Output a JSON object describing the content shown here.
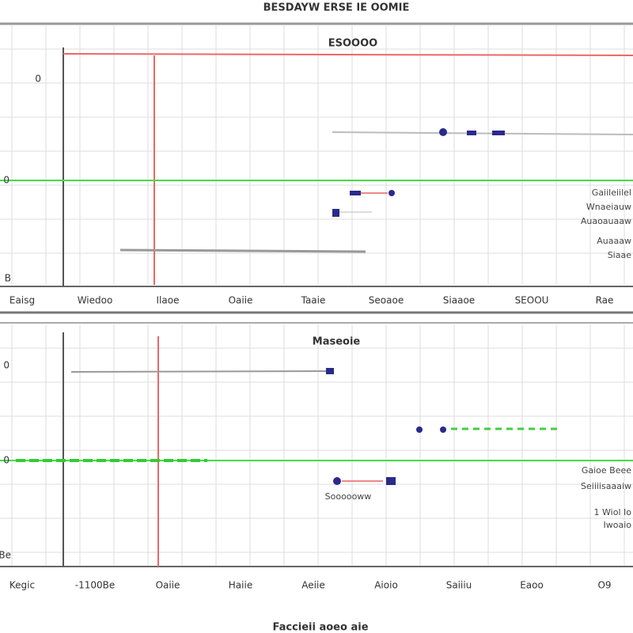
{
  "header": {
    "title": "BESDAYW ERSE IE OOMIE"
  },
  "panels": [
    {
      "title": "ESOOOO",
      "y_labels": [
        "0",
        "0",
        "B"
      ],
      "x_labels": [
        "Eaisg",
        "Wiedoo",
        "Ilaoe",
        "Oaiie",
        "Taaie",
        "Seoaoe",
        "Siaaoe",
        "SEOOU",
        "Rae"
      ],
      "notes": [
        "Gaiileiilel",
        "Wnaeiauw",
        "Auaoauaaw",
        "Auaaaw",
        "Siaae"
      ]
    },
    {
      "title": "Maseoie",
      "y_labels": [
        "0",
        "0",
        "Be"
      ],
      "x_labels": [
        "Kegic",
        "-1100Be",
        "Oaiie",
        "Haiie",
        "Aeiie",
        "Aioio",
        "Saiiiu",
        "Eaoo",
        "O9"
      ],
      "notes": [
        "Gaioe Beee",
        "Seiiiisaaaiw",
        "1 Wiol Io",
        "Iwoaio"
      ],
      "marker_label": "Soooooww"
    }
  ],
  "footer": {
    "caption": "Faccieii aoeo aie"
  }
}
